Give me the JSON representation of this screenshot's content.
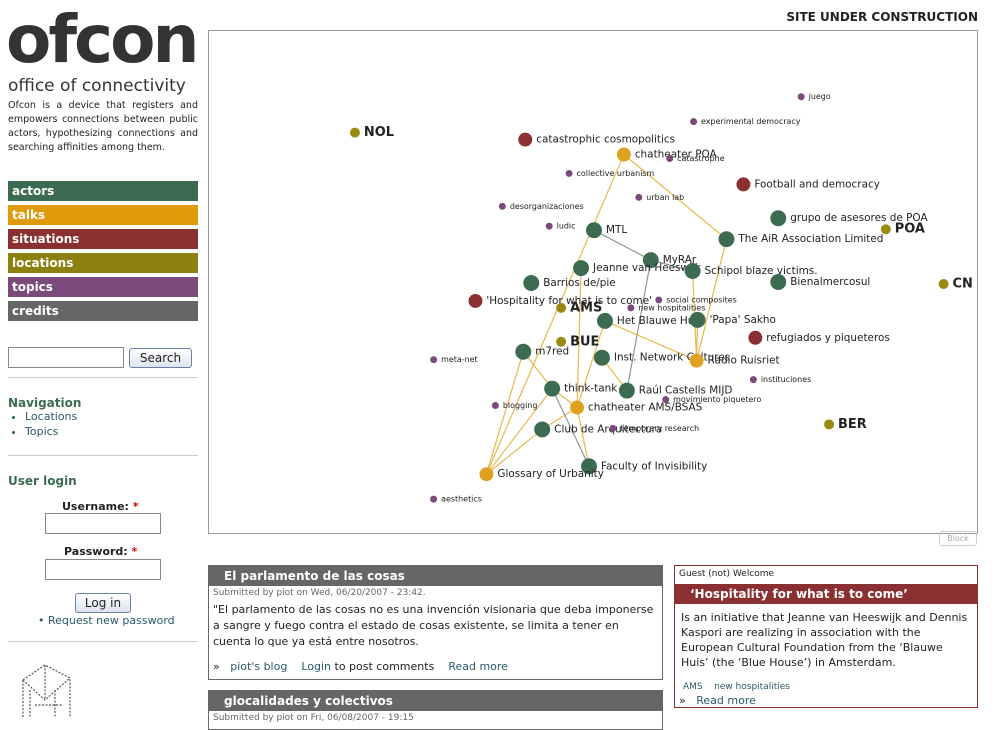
{
  "header": {
    "logo": "ofcon",
    "tagline": "office of connectivity",
    "description": "Ofcon is a device that registers and empowers connections between public actors, hypothesizing connections and searching affinities among them.",
    "notice": "SITE UNDER CONSTRUCTION"
  },
  "menu": [
    "actors",
    "talks",
    "situations",
    "locations",
    "topics",
    "credits"
  ],
  "search": {
    "button": "Search"
  },
  "navigation": {
    "title": "Navigation",
    "links": [
      "Locations",
      "Topics"
    ]
  },
  "login": {
    "title": "User login",
    "username": "Username:",
    "password": "Password:",
    "required": "*",
    "button": "Log in",
    "request": "Request new password"
  },
  "graph": {
    "block": "Block",
    "nodes": [
      "juego",
      "experimental democracy",
      "NOL",
      "catastrophic cosmopolitics",
      "chatheater POA",
      "catastrophe",
      "collective urbanism",
      "Football and democracy",
      "urban lab",
      "desorganizaciones",
      "grupo de asesores de POA",
      "ludic",
      "POA",
      "MTL",
      "The AiR Association Limited",
      "MyRAr",
      "Jeanne van Heeswijk",
      "Schipol blaze victims.",
      "Barrios de/pie",
      "Bienalmercosul",
      "CN",
      "'Hospitality for what is to come'",
      "social composites",
      "AMS",
      "new hospitalities",
      "Het Blauwe Huis",
      "'Papa' Sakho",
      "refugiados y piqueteros",
      "BUE",
      "m7red",
      "Inst. Network Cultures",
      "Radio Ruisriet",
      "meta-net",
      "instituciones",
      "think-tank",
      "Raúl Castells MIJD",
      "movimiento piquetero",
      "blogging",
      "chatheater AMS/BSAS",
      "Club de Arquitectura",
      "temporary research",
      "BER",
      "Faculty of Invisibility",
      "Glossary of Urbanity",
      "aesthetics"
    ]
  },
  "articles": [
    {
      "title": "El parlamento de las cosas",
      "submitted": "Submitted by piot on Wed, 06/20/2007 - 23:42.",
      "body": "\"El parlamento de las cosas no es una invención visionaria que deba imponerse a sangre y fuego contra el estado de cosas existente, se limita a tener en cuenta lo que ya está entre nosotros.",
      "links": [
        "piot's blog",
        "Login",
        "to post comments",
        "Read more"
      ]
    },
    {
      "title": "glocalidades y colectivos",
      "submitted": "Submitted by piot on Fri, 06/08/2007 - 19:15"
    }
  ],
  "sidebar_block": {
    "greeting": "Guest (not) Welcome",
    "title": "‘Hospitality for what is to come’",
    "body": "Is an initiative that Jeanne van Heeswijk and Dennis Kaspori are realizing in association with the European Cultural Foundation from the ‘Blauwe Huis’ (the ‘Blue House’) in Amsterdam.",
    "tags": [
      "AMS",
      "new hospitalities"
    ],
    "read_more": "Read more"
  }
}
